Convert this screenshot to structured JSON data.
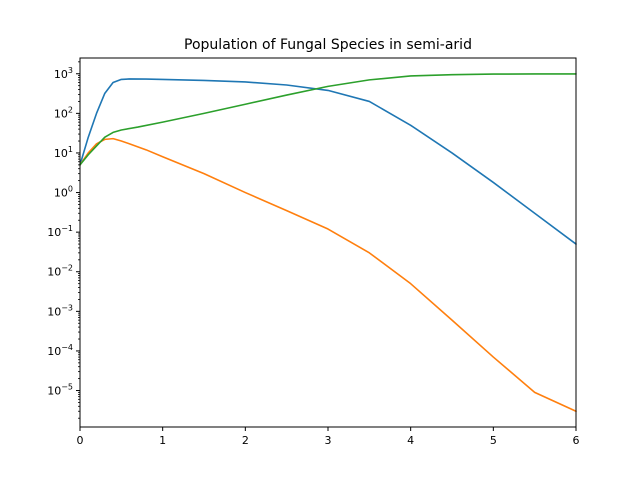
{
  "chart_data": {
    "type": "line",
    "title": "Population of Fungal Species in semi-arid",
    "xlabel": "",
    "ylabel": "",
    "yscale": "log",
    "xlim": [
      0,
      6
    ],
    "ylim": [
      1.2e-06,
      2500
    ],
    "x_ticks": [
      "0",
      "1",
      "2",
      "3",
      "4",
      "5",
      "6"
    ],
    "y_ticks": [
      {
        "base": "10",
        "exp": "3",
        "value": 1000
      },
      {
        "base": "10",
        "exp": "2",
        "value": 100
      },
      {
        "base": "10",
        "exp": "1",
        "value": 10
      },
      {
        "base": "10",
        "exp": "0",
        "value": 1
      },
      {
        "base": "10",
        "exp": "−1",
        "value": 0.1
      },
      {
        "base": "10",
        "exp": "−2",
        "value": 0.01
      },
      {
        "base": "10",
        "exp": "−3",
        "value": 0.001
      },
      {
        "base": "10",
        "exp": "−4",
        "value": 0.0001
      },
      {
        "base": "10",
        "exp": "−5",
        "value": 1e-05
      }
    ],
    "grid": false,
    "legend": "none",
    "series": [
      {
        "color": "#1f77b4",
        "x": [
          0,
          0.1,
          0.2,
          0.3,
          0.4,
          0.5,
          0.6,
          0.8,
          1.0,
          1.5,
          2.0,
          2.5,
          3.0,
          3.5,
          4.0,
          4.5,
          5.0,
          5.5,
          6.0
        ],
        "y": [
          5,
          25,
          100,
          320,
          600,
          720,
          740,
          735,
          720,
          680,
          620,
          520,
          380,
          200,
          50,
          10,
          1.8,
          0.3,
          0.05
        ]
      },
      {
        "color": "#ff7f0e",
        "x": [
          0,
          0.1,
          0.2,
          0.3,
          0.4,
          0.5,
          0.6,
          0.8,
          1.0,
          1.5,
          2.0,
          2.5,
          3.0,
          3.5,
          4.0,
          4.5,
          5.0,
          5.5,
          6.0
        ],
        "y": [
          5,
          10,
          17,
          22,
          23,
          20,
          17,
          12,
          8,
          3,
          1,
          0.35,
          0.12,
          0.03,
          0.005,
          0.0006,
          7e-05,
          9e-06,
          3e-06
        ]
      },
      {
        "color": "#2ca02c",
        "x": [
          0,
          0.1,
          0.2,
          0.3,
          0.4,
          0.5,
          0.7,
          1.0,
          1.5,
          2.0,
          2.5,
          3.0,
          3.5,
          4.0,
          4.5,
          5.0,
          5.5,
          6.0
        ],
        "y": [
          5,
          9,
          15,
          25,
          33,
          38,
          45,
          60,
          100,
          170,
          290,
          480,
          700,
          880,
          950,
          980,
          990,
          990
        ]
      }
    ]
  }
}
